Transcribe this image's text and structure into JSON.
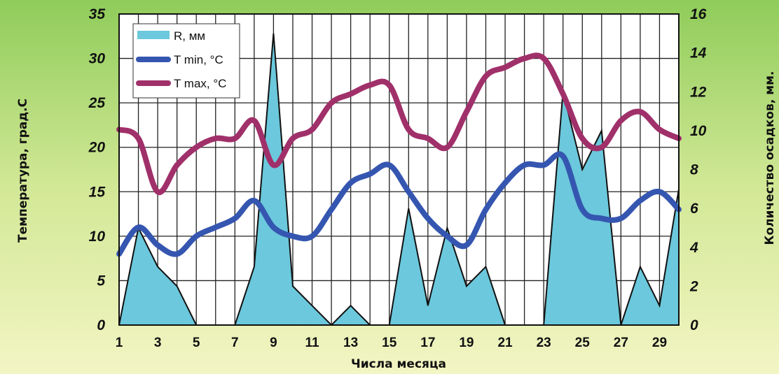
{
  "chart_data": {
    "type": "line",
    "xlabel": "Числа месяца",
    "ylabel_left": "Температура, град.С",
    "ylabel_right": "Количество осадков, мм.",
    "x": [
      1,
      2,
      3,
      4,
      5,
      6,
      7,
      8,
      9,
      10,
      11,
      12,
      13,
      14,
      15,
      16,
      17,
      18,
      19,
      20,
      21,
      22,
      23,
      24,
      25,
      26,
      27,
      28,
      29,
      30
    ],
    "x_ticks": [
      "1",
      "3",
      "5",
      "7",
      "9",
      "11",
      "13",
      "15",
      "17",
      "19",
      "21",
      "23",
      "25",
      "27",
      "29"
    ],
    "ylim_left": [
      0,
      35
    ],
    "yticks_left": [
      "0",
      "5",
      "10",
      "15",
      "20",
      "25",
      "30",
      "35"
    ],
    "ylim_right": [
      0,
      16
    ],
    "yticks_right": [
      "0",
      "2",
      "4",
      "6",
      "8",
      "10",
      "12",
      "14",
      "16"
    ],
    "grid": true,
    "legend_position": "top-left",
    "series": [
      {
        "name": "R, мм",
        "type": "area",
        "axis": "right",
        "color": "#6cc8dc",
        "values": [
          0,
          5,
          3,
          2,
          0,
          0,
          0,
          3,
          15,
          2,
          1,
          0,
          1,
          0,
          0,
          6,
          1,
          5,
          2,
          3,
          0,
          0,
          0,
          12,
          8,
          10,
          0,
          3,
          1,
          7
        ]
      },
      {
        "name": "T min, °C",
        "type": "line",
        "axis": "left",
        "color": "#3556b0",
        "values": [
          8,
          11,
          9,
          8,
          10,
          11,
          12,
          14,
          11,
          10,
          10,
          13,
          16,
          17,
          18,
          15,
          12,
          10,
          9,
          13,
          16,
          18,
          18,
          19,
          13,
          12,
          12,
          14,
          15,
          13
        ]
      },
      {
        "name": "T max, °C",
        "type": "line",
        "axis": "left",
        "color": "#a0306a",
        "values": [
          22,
          21,
          15,
          18,
          20,
          21,
          21,
          23,
          18,
          21,
          22,
          25,
          26,
          27,
          27,
          22,
          21,
          20,
          24,
          28,
          29,
          30,
          30,
          26,
          21,
          20,
          23,
          24,
          22,
          21
        ]
      }
    ]
  }
}
